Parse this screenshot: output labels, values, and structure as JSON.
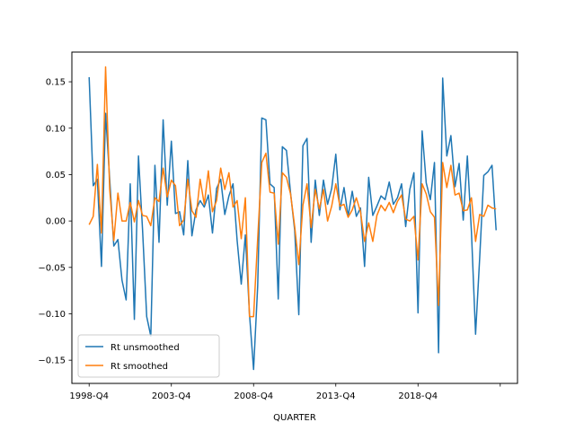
{
  "chart_data": {
    "type": "line",
    "title": "",
    "xlabel": "QUARTER",
    "ylabel": "",
    "x_tick_labels": [
      "1998-Q4",
      "2003-Q4",
      "2008-Q4",
      "2013-Q4",
      "2018-Q4",
      ""
    ],
    "x_tick_positions": [
      0,
      20,
      40,
      60,
      80,
      100
    ],
    "y_ticks": [
      -0.15,
      -0.1,
      -0.05,
      0.0,
      0.05,
      0.1,
      0.15
    ],
    "y_tick_labels": [
      "−0.15",
      "−0.10",
      "−0.05",
      "0.00",
      "0.05",
      "0.10",
      "0.15"
    ],
    "xlim": [
      -4.2,
      104.2
    ],
    "ylim": [
      -0.175,
      0.182
    ],
    "grid": false,
    "legend": "bottom-left",
    "colors": {
      "unsmoothed": "#1f77b4",
      "smoothed": "#ff7f0e"
    },
    "series": [
      {
        "name": "Rt unsmoothed",
        "values": [
          0.155,
          0.038,
          0.045,
          -0.049,
          0.116,
          0.045,
          -0.027,
          -0.02,
          -0.064,
          -0.085,
          0.04,
          -0.106,
          0.07,
          -0.01,
          -0.103,
          -0.124,
          0.06,
          -0.023,
          0.109,
          0.017,
          0.086,
          0.008,
          0.01,
          -0.015,
          0.065,
          -0.016,
          0.012,
          0.022,
          0.015,
          0.028,
          -0.013,
          0.035,
          0.045,
          0.007,
          0.027,
          0.04,
          -0.021,
          -0.068,
          -0.015,
          -0.1,
          -0.16,
          -0.07,
          0.111,
          0.109,
          0.04,
          0.036,
          -0.084,
          0.08,
          0.076,
          0.03,
          -0.01,
          -0.101,
          0.081,
          0.089,
          -0.023,
          0.044,
          0.006,
          0.044,
          0.018,
          0.035,
          0.072,
          0.012,
          0.036,
          0.005,
          0.032,
          0.005,
          0.014,
          -0.049,
          0.047,
          0.006,
          0.016,
          0.027,
          0.023,
          0.042,
          0.018,
          0.025,
          0.04,
          -0.006,
          0.034,
          0.052,
          -0.099,
          0.097,
          0.041,
          0.023,
          0.063,
          -0.142,
          0.154,
          0.07,
          0.092,
          0.037,
          0.062,
          0.001,
          0.07,
          -0.012,
          -0.122,
          -0.04,
          0.049,
          0.053,
          0.06,
          -0.01
        ]
      },
      {
        "name": "Rt smoothed",
        "values": [
          -0.004,
          0.005,
          0.061,
          -0.013,
          0.166,
          0.034,
          -0.021,
          0.03,
          0.0,
          0.0,
          0.02,
          -0.001,
          0.022,
          0.006,
          0.005,
          -0.005,
          0.025,
          0.021,
          0.057,
          0.026,
          0.044,
          0.038,
          -0.005,
          0.001,
          0.045,
          0.011,
          0.004,
          0.045,
          0.018,
          0.054,
          0.01,
          0.022,
          0.057,
          0.034,
          0.052,
          0.015,
          0.022,
          -0.019,
          0.025,
          -0.103,
          -0.103,
          -0.019,
          0.063,
          0.073,
          0.031,
          0.03,
          -0.025,
          0.052,
          0.047,
          0.029,
          -0.006,
          -0.047,
          0.017,
          0.04,
          -0.007,
          0.034,
          0.013,
          0.034,
          0.0,
          0.016,
          0.04,
          0.016,
          0.018,
          0.004,
          0.012,
          0.025,
          0.01,
          -0.022,
          -0.002,
          -0.022,
          0.006,
          0.017,
          0.011,
          0.02,
          0.009,
          0.021,
          0.028,
          0.002,
          0.0,
          0.005,
          -0.042,
          0.04,
          0.029,
          0.01,
          0.004,
          -0.091,
          0.063,
          0.036,
          0.06,
          0.028,
          0.03,
          0.011,
          0.012,
          0.025,
          -0.022,
          0.007,
          0.005,
          0.017,
          0.014,
          0.013
        ]
      }
    ]
  }
}
